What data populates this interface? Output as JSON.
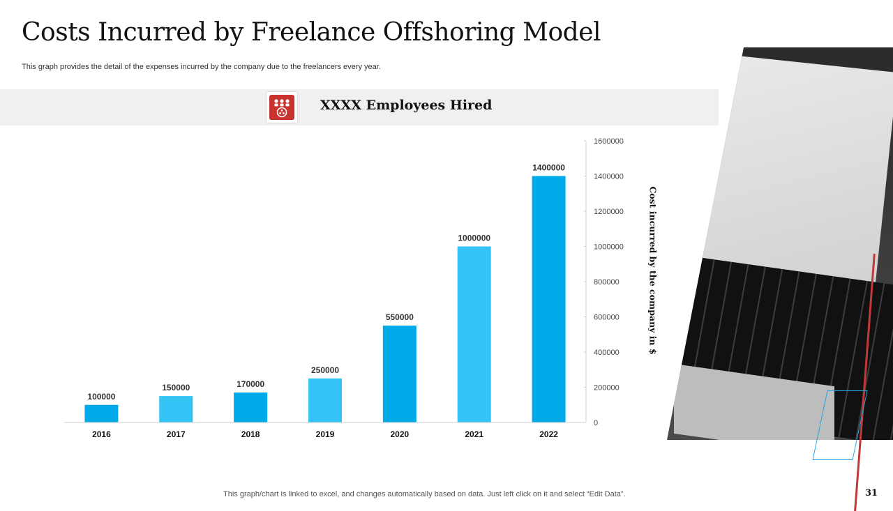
{
  "slide": {
    "title": "Costs Incurred by Freelance Offshoring Model",
    "subtitle": "This graph provides the detail of the expenses incurred by the company due to the freelancers every year.",
    "banner_text": "XXXX Employees Hired",
    "footer": "This graph/chart is linked to excel, and changes automatically based on data. Just left click on it and select “Edit Data”.",
    "page_number": "31"
  },
  "colors": {
    "bar_dark": "#00a9e8",
    "bar_light": "#33c3f5",
    "accent_red": "#c8322f",
    "accent_blue": "#2aa4e0"
  },
  "icons": {
    "banner": "employees-group-icon"
  },
  "chart_data": {
    "type": "bar",
    "categories": [
      "2016",
      "2017",
      "2018",
      "2019",
      "2020",
      "2021",
      "2022"
    ],
    "values": [
      100000,
      150000,
      170000,
      250000,
      550000,
      1000000,
      1400000
    ],
    "data_labels": [
      "100000",
      "150000",
      "170000",
      "250000",
      "550000",
      "1000000",
      "1400000"
    ],
    "y_ticks": [
      "0",
      "200000",
      "400000",
      "600000",
      "800000",
      "1000000",
      "1200000",
      "1400000",
      "1600000"
    ],
    "ylim": [
      0,
      1600000
    ],
    "ylabel": "Cost incurred by the company in $",
    "xlabel": "",
    "title": "",
    "y_axis_position": "right",
    "grid": false
  }
}
